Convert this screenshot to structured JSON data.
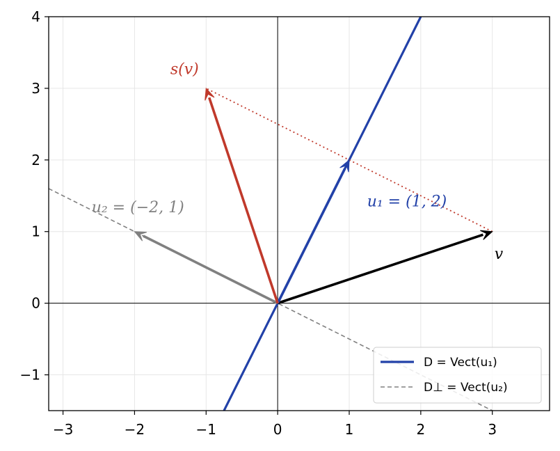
{
  "chart_data": {
    "type": "line",
    "xlim": [
      -3.2,
      3.8
    ],
    "ylim": [
      -1.5,
      4
    ],
    "grid": true,
    "xticks": [
      -3,
      -2,
      -1,
      0,
      1,
      2,
      3
    ],
    "yticks": [
      -1,
      0,
      1,
      2,
      3,
      4
    ],
    "xtick_labels": [
      "−3",
      "−2",
      "−1",
      "0",
      "1",
      "2",
      "3"
    ],
    "ytick_labels": [
      "−1",
      "0",
      "1",
      "2",
      "3",
      "4"
    ],
    "series": [
      {
        "name": "D = Vect(u₁)",
        "points": [
          [
            -0.75,
            -1.5
          ],
          [
            2.0,
            4.0
          ]
        ],
        "color": "#2241a8",
        "style": "solid"
      },
      {
        "name": "D⊥ = Vect(u₂)",
        "points": [
          [
            -3.2,
            1.6
          ],
          [
            3.8,
            -1.9
          ]
        ],
        "color": "#808080",
        "style": "dashed"
      }
    ],
    "vectors": [
      {
        "label": "v",
        "from": [
          0,
          0
        ],
        "to": [
          3,
          1
        ],
        "color": "#000000"
      },
      {
        "label": "u₁ = (1, 2)",
        "from": [
          0,
          0
        ],
        "to": [
          1,
          2
        ],
        "color": "#2241a8"
      },
      {
        "label": "u₂ = (−2, 1)",
        "from": [
          0,
          0
        ],
        "to": [
          -2,
          1
        ],
        "color": "#808080"
      },
      {
        "label": "s(v)",
        "from": [
          0,
          0
        ],
        "to": [
          -1,
          3
        ],
        "color": "#c0392b"
      }
    ],
    "segments": [
      {
        "from": [
          3,
          1
        ],
        "to": [
          -1,
          3
        ],
        "color": "#c0392b",
        "style": "dotted"
      }
    ],
    "annotations": {
      "v": "v",
      "u1": "u₁ = (1, 2)",
      "u2": "u₂ = (−2, 1)",
      "sv": "s(v)"
    },
    "legend": {
      "placement": "lower-right",
      "entries": [
        {
          "label": "D = Vect(u₁)",
          "color": "#2241a8",
          "style": "solid"
        },
        {
          "label": "D⊥ = Vect(u₂)",
          "color": "#808080",
          "style": "dashed"
        }
      ]
    }
  }
}
